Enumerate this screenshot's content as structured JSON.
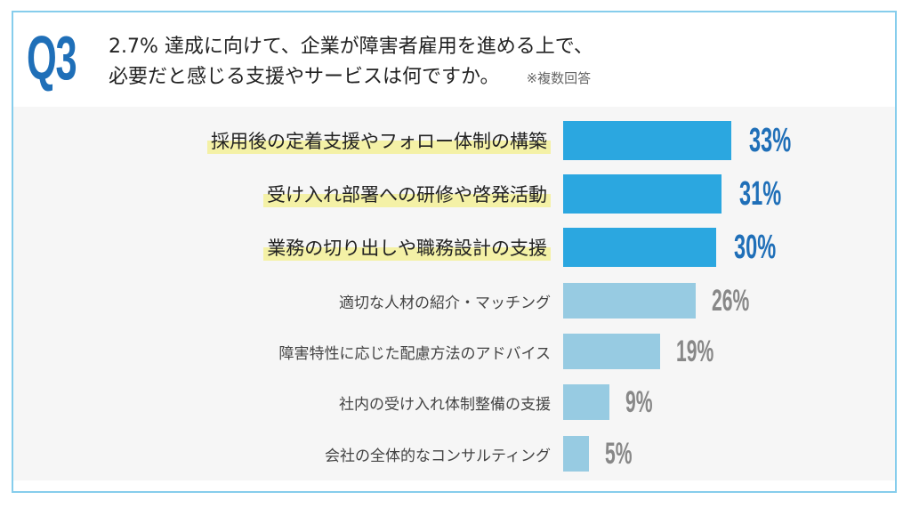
{
  "header": {
    "q_label": "Q3",
    "title_line1": "2.7% 達成に向けて、企業が障害者雇用を進める上で、",
    "title_line2": "必要だと感じる支援やサービスは何ですか。",
    "note": "※複数回答"
  },
  "colors": {
    "frame": "#86cdec",
    "q": "#1f6fb8",
    "bar_top": "#2ba7e0",
    "bar_other": "#97cbe2",
    "value_top": "#1f6fb8",
    "value_other": "#888888",
    "highlight": "#f4f1a6"
  },
  "chart_data": {
    "type": "bar",
    "orientation": "horizontal",
    "categories": [
      "採用後の定着支援やフォロー体制の構築",
      "受け入れ部署への研修や啓発活動",
      "業務の切り出しや職務設計の支援",
      "適切な人材の紹介・マッチング",
      "障害特性に応じた配慮方法のアドバイス",
      "社内の受け入れ体制整備の支援",
      "会社の全体的なコンサルティング"
    ],
    "values": [
      33,
      31,
      30,
      26,
      19,
      9,
      5
    ],
    "value_labels": [
      "33%",
      "31%",
      "30%",
      "26%",
      "19%",
      "9%",
      "5%"
    ],
    "highlighted_top": 3,
    "unit": "%",
    "grid": false
  }
}
